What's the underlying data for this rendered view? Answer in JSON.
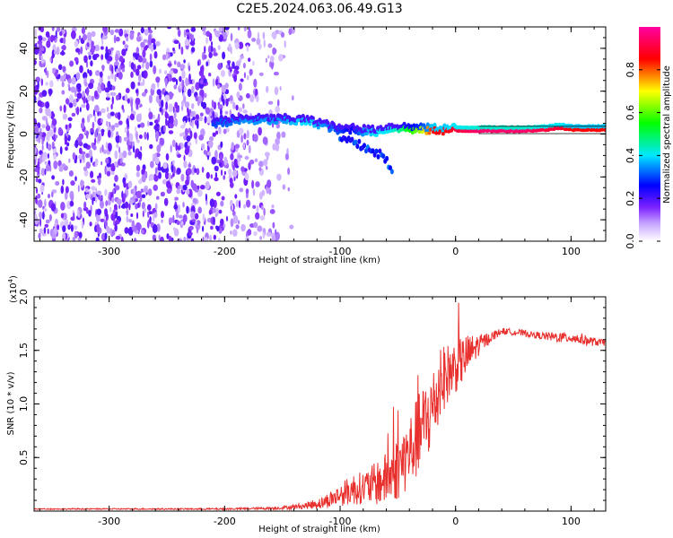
{
  "title": "C2E5.2024.063.06.49.G13",
  "chart_data": [
    {
      "type": "heatmap",
      "name": "spectrogram",
      "xlabel": "Height of straight line (km)",
      "ylabel": "Frequency (Hz)",
      "xlim": [
        -365,
        130
      ],
      "ylim": [
        -50,
        50
      ],
      "xticks": [
        -300,
        -200,
        -100,
        0,
        100
      ],
      "yticks": [
        -40,
        -20,
        0,
        20,
        40
      ],
      "colorbar": {
        "label": "Normalized spectral amplitude",
        "range": [
          0,
          1
        ],
        "ticks": [
          0.0,
          0.2,
          0.4,
          0.6,
          0.8
        ],
        "colormap": [
          "#ffffff",
          "#8a3cff",
          "#0000ff",
          "#00e0ff",
          "#00ff00",
          "#ffff00",
          "#ff0000",
          "#ff00a0"
        ]
      },
      "noise_region": {
        "x_range": [
          -365,
          -140
        ],
        "y_range": [
          -50,
          50
        ],
        "amplitude_range": [
          0.05,
          0.2
        ]
      },
      "signal_track": {
        "x": [
          -210,
          -180,
          -150,
          -130,
          -115,
          -100,
          -90,
          -80,
          -70,
          -60,
          -50,
          -40,
          -30,
          -20,
          -10,
          0,
          20,
          40,
          60,
          80,
          90,
          100,
          130
        ],
        "frequency": [
          5,
          6,
          6,
          5.5,
          4,
          1,
          2,
          1,
          0.5,
          2,
          2.5,
          2,
          1.5,
          1.5,
          1.5,
          1.5,
          1.5,
          1.5,
          1.5,
          2,
          3,
          2,
          2
        ],
        "amplitude": [
          0.3,
          0.35,
          0.35,
          0.4,
          0.35,
          0.3,
          0.25,
          0.35,
          0.4,
          0.4,
          0.45,
          0.55,
          0.65,
          0.85,
          0.85,
          0.9,
          0.95,
          0.95,
          0.95,
          0.9,
          0.9,
          0.85,
          0.85
        ]
      },
      "secondary_track": {
        "x": [
          -100,
          -85,
          -70,
          -60,
          -55
        ],
        "frequency": [
          -2,
          -5,
          -8,
          -12,
          -18
        ]
      }
    },
    {
      "type": "line",
      "name": "snr",
      "xlabel": "Height of straight line (km)",
      "ylabel": "SNR (10 * v/v)",
      "yscale_label": "(x10",
      "yscale_exponent": "4",
      "yscale_suffix": ")",
      "xlim": [
        -365,
        130
      ],
      "ylim": [
        0,
        2.0
      ],
      "xticks": [
        -300,
        -200,
        -100,
        0,
        100
      ],
      "yticks": [
        0.5,
        1.0,
        1.5,
        2.0
      ],
      "ytick_labels": [
        "0.5",
        "1.0",
        "1.5",
        "2.0"
      ],
      "series": [
        {
          "color": "#e8312e",
          "x": [
            -365,
            -300,
            -250,
            -200,
            -170,
            -150,
            -130,
            -115,
            -100,
            -90,
            -80,
            -70,
            -60,
            -50,
            -40,
            -30,
            -20,
            -15,
            -10,
            0,
            10,
            20,
            30,
            40,
            50,
            60,
            70,
            80,
            90,
            100,
            110,
            120,
            130
          ],
          "y": [
            0.02,
            0.02,
            0.02,
            0.02,
            0.025,
            0.03,
            0.05,
            0.08,
            0.15,
            0.2,
            0.22,
            0.25,
            0.3,
            0.4,
            0.55,
            0.75,
            0.95,
            1.1,
            1.25,
            1.35,
            1.45,
            1.55,
            1.62,
            1.68,
            1.67,
            1.66,
            1.64,
            1.63,
            1.62,
            1.62,
            1.6,
            1.58,
            1.57
          ],
          "noise_amplitude": [
            0.005,
            0.006,
            0.006,
            0.008,
            0.01,
            0.015,
            0.03,
            0.06,
            0.1,
            0.15,
            0.15,
            0.2,
            0.25,
            0.3,
            0.35,
            0.4,
            0.4,
            0.35,
            0.3,
            0.25,
            0.2,
            0.1,
            0.05,
            0.03,
            0.03,
            0.03,
            0.03,
            0.04,
            0.05,
            0.05,
            0.05,
            0.04,
            0.03
          ]
        }
      ]
    }
  ]
}
